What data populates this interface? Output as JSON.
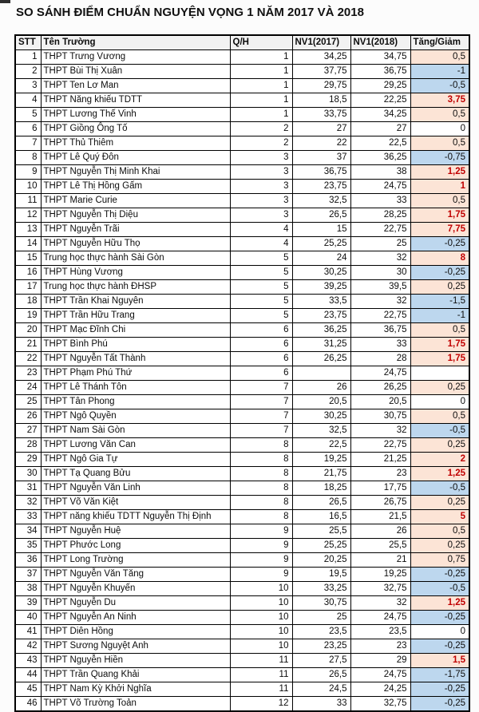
{
  "title": "SO SÁNH ĐIỂM CHUẨN NGUYỆN VỌNG 1 NĂM 2017 VÀ 2018",
  "colors": {
    "header_bg": "#f2f2f2",
    "increase_bg": "#fce4d6",
    "decrease_bg": "#bdd7ee",
    "strong_increase_text": "#c00000",
    "border": "#000000"
  },
  "table": {
    "headers": {
      "stt": "STT",
      "name": "Tên Trường",
      "qh": "Q/H",
      "nv2017": "NV1(2017)",
      "nv2018": "NV1(2018)",
      "change": "Tăng/Giảm"
    },
    "rows": [
      {
        "stt": 1,
        "name": "THPT Trưng Vương",
        "qh": 1,
        "nv2017": "34,25",
        "nv2018": "34,75",
        "change": "0,5"
      },
      {
        "stt": 2,
        "name": "THPT Bùi Thị Xuân",
        "qh": 1,
        "nv2017": "37,75",
        "nv2018": "36,75",
        "change": "-1"
      },
      {
        "stt": 3,
        "name": "THPT Ten Lơ Man",
        "qh": 1,
        "nv2017": "29,75",
        "nv2018": "29,25",
        "change": "-0,5"
      },
      {
        "stt": 4,
        "name": "THPT Năng khiếu TDTT",
        "qh": 1,
        "nv2017": "18,5",
        "nv2018": "22,25",
        "change": "3,75"
      },
      {
        "stt": 5,
        "name": "THPT Lương Thế Vinh",
        "qh": 1,
        "nv2017": "33,75",
        "nv2018": "34,25",
        "change": "0,5"
      },
      {
        "stt": 6,
        "name": "THPT Giồng Ông Tố",
        "qh": 2,
        "nv2017": "27",
        "nv2018": "27",
        "change": "0"
      },
      {
        "stt": 7,
        "name": "THPT Thủ Thiêm",
        "qh": 2,
        "nv2017": "22",
        "nv2018": "22,5",
        "change": "0,5"
      },
      {
        "stt": 8,
        "name": "THPT Lê Quý Đôn",
        "qh": 3,
        "nv2017": "37",
        "nv2018": "36,25",
        "change": "-0,75"
      },
      {
        "stt": 9,
        "name": "THPT Nguyễn Thị Minh Khai",
        "qh": 3,
        "nv2017": "36,75",
        "nv2018": "38",
        "change": "1,25"
      },
      {
        "stt": 10,
        "name": "THPT Lê Thị Hồng Gấm",
        "qh": 3,
        "nv2017": "23,75",
        "nv2018": "24,75",
        "change": "1"
      },
      {
        "stt": 11,
        "name": "THPT Marie Curie",
        "qh": 3,
        "nv2017": "32,5",
        "nv2018": "33",
        "change": "0,5"
      },
      {
        "stt": 12,
        "name": "THPT Nguyễn Thị Diệu",
        "qh": 3,
        "nv2017": "26,5",
        "nv2018": "28,25",
        "change": "1,75"
      },
      {
        "stt": 13,
        "name": "THPT Nguyễn Trãi",
        "qh": 4,
        "nv2017": "15",
        "nv2018": "22,75",
        "change": "7,75"
      },
      {
        "stt": 14,
        "name": "THPT Nguyễn Hữu Thọ",
        "qh": 4,
        "nv2017": "25,25",
        "nv2018": "25",
        "change": "-0,25"
      },
      {
        "stt": 15,
        "name": "Trung học thực hành Sài Gòn",
        "qh": 5,
        "nv2017": "24",
        "nv2018": "32",
        "change": "8"
      },
      {
        "stt": 16,
        "name": "THPT Hùng Vương",
        "qh": 5,
        "nv2017": "30,25",
        "nv2018": "30",
        "change": "-0,25"
      },
      {
        "stt": 17,
        "name": "Trung học thực hành ĐHSP",
        "qh": 5,
        "nv2017": "39,25",
        "nv2018": "39,5",
        "change": "0,25"
      },
      {
        "stt": 18,
        "name": "THPT Trần Khai Nguyên",
        "qh": 5,
        "nv2017": "33,5",
        "nv2018": "32",
        "change": "-1,5"
      },
      {
        "stt": 19,
        "name": "THPT Trần Hữu Trang",
        "qh": 5,
        "nv2017": "23,75",
        "nv2018": "22,75",
        "change": "-1"
      },
      {
        "stt": 20,
        "name": "THPT Mạc Đĩnh Chi",
        "qh": 6,
        "nv2017": "36,25",
        "nv2018": "36,75",
        "change": "0,5"
      },
      {
        "stt": 21,
        "name": "THPT Bình Phú",
        "qh": 6,
        "nv2017": "31,25",
        "nv2018": "33",
        "change": "1,75"
      },
      {
        "stt": 22,
        "name": "THPT Nguyễn Tất Thành",
        "qh": 6,
        "nv2017": "26,25",
        "nv2018": "28",
        "change": "1,75"
      },
      {
        "stt": 23,
        "name": "THPT Phạm Phú Thứ",
        "qh": 6,
        "nv2017": "",
        "nv2018": "24,75",
        "change": ""
      },
      {
        "stt": 24,
        "name": "THPT Lê Thánh Tôn",
        "qh": 7,
        "nv2017": "26",
        "nv2018": "26,25",
        "change": "0,25"
      },
      {
        "stt": 25,
        "name": "THPT Tân Phong",
        "qh": 7,
        "nv2017": "20,5",
        "nv2018": "20,5",
        "change": "0"
      },
      {
        "stt": 26,
        "name": "THPT Ngô Quyền",
        "qh": 7,
        "nv2017": "30,25",
        "nv2018": "30,75",
        "change": "0,5"
      },
      {
        "stt": 27,
        "name": "THPT Nam Sài Gòn",
        "qh": 7,
        "nv2017": "32,5",
        "nv2018": "32",
        "change": "-0,5"
      },
      {
        "stt": 28,
        "name": "THPT Lương Văn Can",
        "qh": 8,
        "nv2017": "22,5",
        "nv2018": "22,75",
        "change": "0,25"
      },
      {
        "stt": 29,
        "name": "THPT Ngô Gia Tự",
        "qh": 8,
        "nv2017": "19,25",
        "nv2018": "21,25",
        "change": "2"
      },
      {
        "stt": 30,
        "name": "THPT Tạ Quang Bửu",
        "qh": 8,
        "nv2017": "21,75",
        "nv2018": "23",
        "change": "1,25"
      },
      {
        "stt": 31,
        "name": "THPT Nguyễn Văn Linh",
        "qh": 8,
        "nv2017": "18,25",
        "nv2018": "17,75",
        "change": "-0,5"
      },
      {
        "stt": 32,
        "name": "THPT Võ Văn Kiệt",
        "qh": 8,
        "nv2017": "26,5",
        "nv2018": "26,75",
        "change": "0,25"
      },
      {
        "stt": 33,
        "name": "THPT năng khiếu TDTT Nguyễn Thị Định",
        "qh": 8,
        "nv2017": "16,5",
        "nv2018": "21,5",
        "change": "5"
      },
      {
        "stt": 34,
        "name": "THPT Nguyễn Huệ",
        "qh": 9,
        "nv2017": "25,5",
        "nv2018": "26",
        "change": "0,5"
      },
      {
        "stt": 35,
        "name": "THPT Phước Long",
        "qh": 9,
        "nv2017": "25,25",
        "nv2018": "25,5",
        "change": "0,25"
      },
      {
        "stt": 36,
        "name": "THPT Long Trường",
        "qh": 9,
        "nv2017": "20,25",
        "nv2018": "21",
        "change": "0,75"
      },
      {
        "stt": 37,
        "name": "THPT Nguyễn Văn Tăng",
        "qh": 9,
        "nv2017": "19,5",
        "nv2018": "19,25",
        "change": "-0,25"
      },
      {
        "stt": 38,
        "name": "THPT Nguyễn Khuyến",
        "qh": 10,
        "nv2017": "33,25",
        "nv2018": "32,75",
        "change": "-0,5"
      },
      {
        "stt": 39,
        "name": "THPT Nguyễn Du",
        "qh": 10,
        "nv2017": "30,75",
        "nv2018": "32",
        "change": "1,25"
      },
      {
        "stt": 40,
        "name": "THPT Nguyễn An Ninh",
        "qh": 10,
        "nv2017": "25",
        "nv2018": "24,75",
        "change": "-0,25"
      },
      {
        "stt": 41,
        "name": "THPT Diên Hồng",
        "qh": 10,
        "nv2017": "23,5",
        "nv2018": "23,5",
        "change": "0"
      },
      {
        "stt": 42,
        "name": "THPT Sương Nguyệt Anh",
        "qh": 10,
        "nv2017": "23,25",
        "nv2018": "23",
        "change": "-0,25"
      },
      {
        "stt": 43,
        "name": "THPT Nguyễn Hiền",
        "qh": 11,
        "nv2017": "27,5",
        "nv2018": "29",
        "change": "1,5"
      },
      {
        "stt": 44,
        "name": "THPT Trần Quang Khải",
        "qh": 11,
        "nv2017": "26,5",
        "nv2018": "24,75",
        "change": "-1,75"
      },
      {
        "stt": 45,
        "name": "THPT Nam Kỳ Khởi Nghĩa",
        "qh": 11,
        "nv2017": "24,5",
        "nv2018": "24,25",
        "change": "-0,25"
      },
      {
        "stt": 46,
        "name": "THPT Võ Trường Toản",
        "qh": 12,
        "nv2017": "33",
        "nv2018": "32,75",
        "change": "-0,25"
      }
    ]
  }
}
